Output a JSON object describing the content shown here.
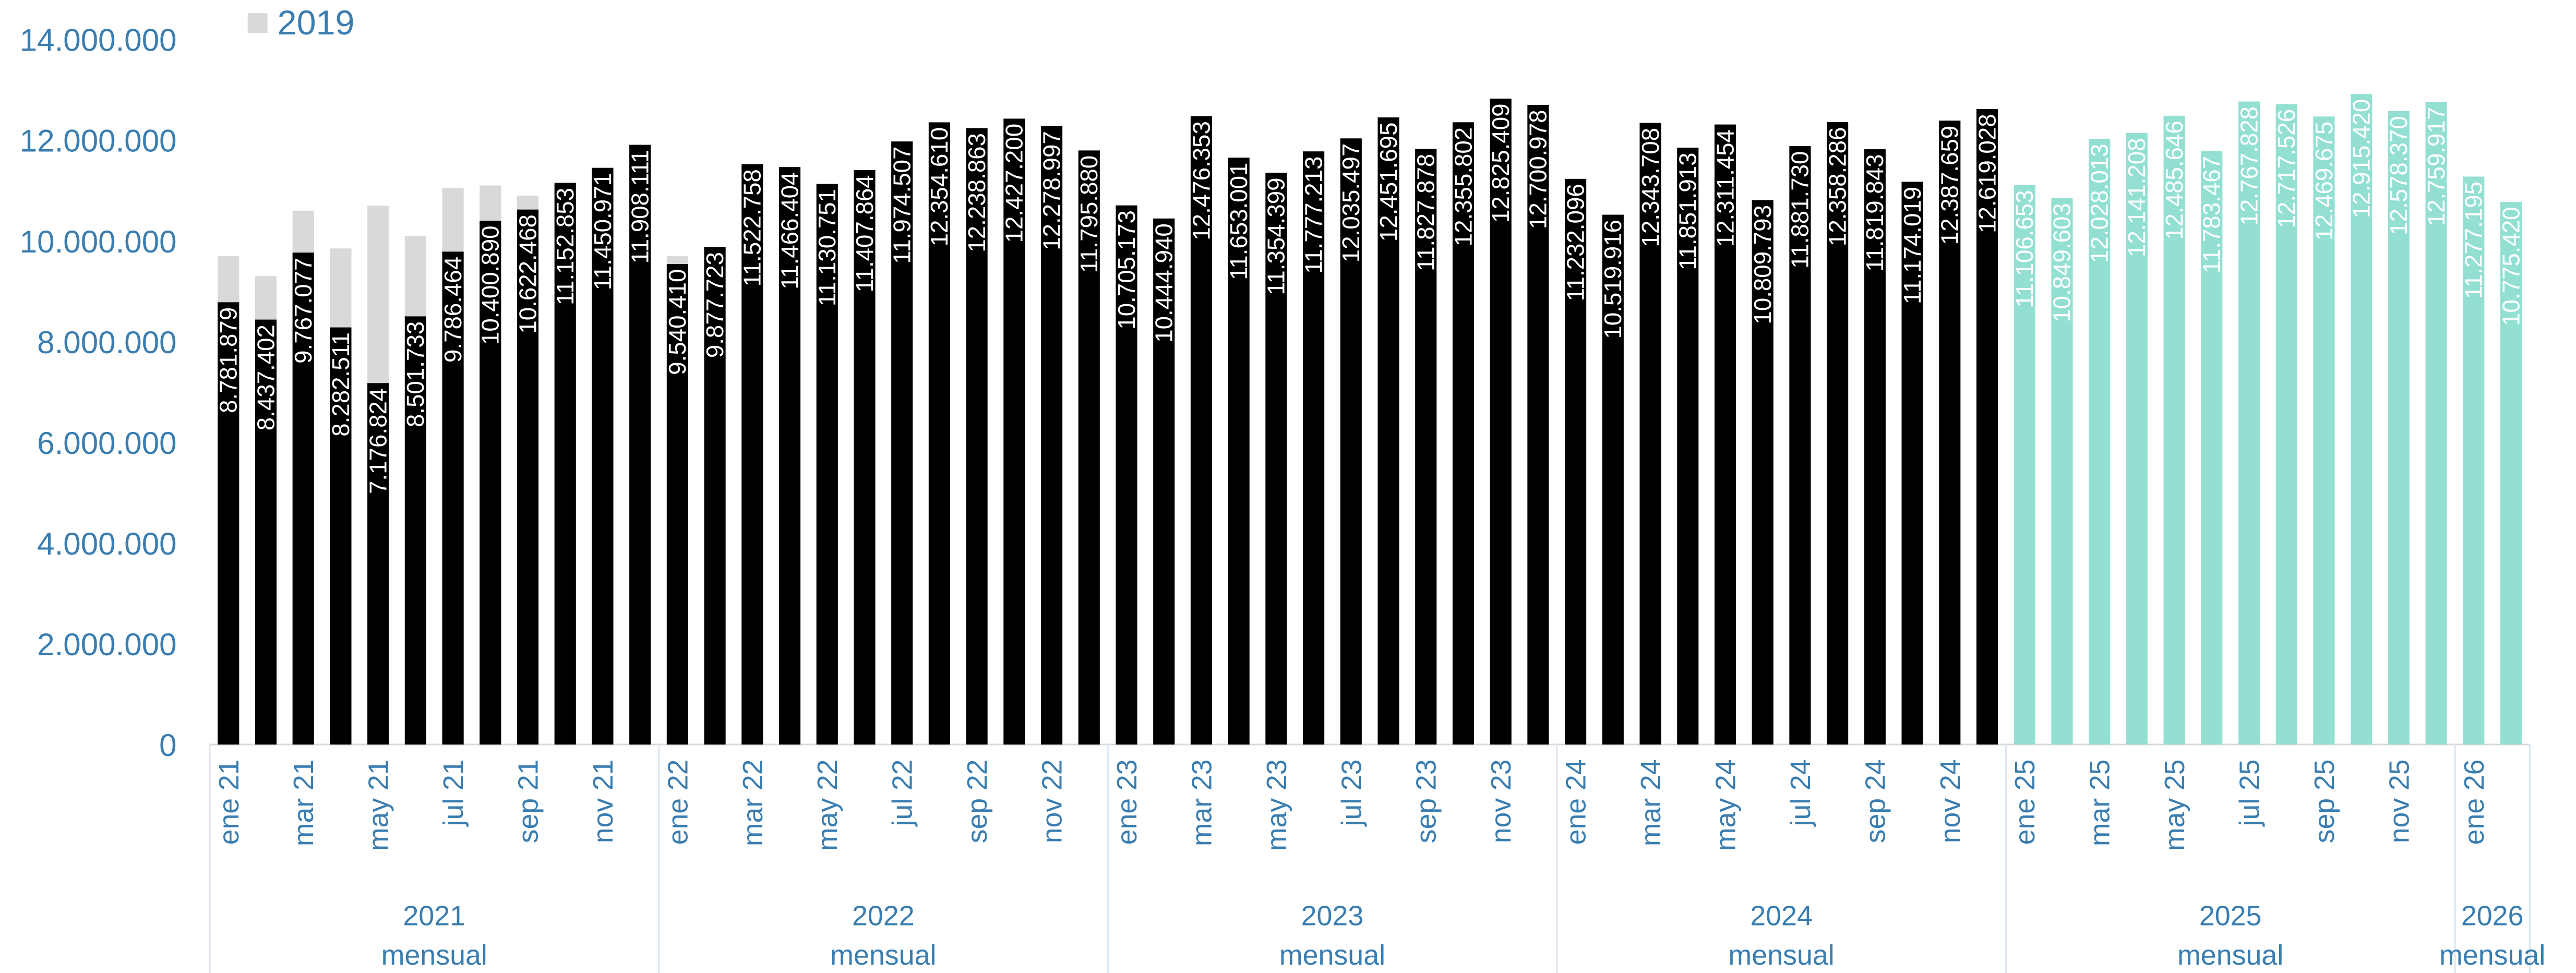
{
  "chart_data": {
    "type": "bar",
    "mode": "overlap",
    "categories": [
      "ene 21",
      null,
      "mar 21",
      null,
      "may 21",
      null,
      "jul 21",
      null,
      "sep 21",
      null,
      "nov 21",
      null,
      "ene 22",
      null,
      "mar 22",
      null,
      "may 22",
      null,
      "jul 22",
      null,
      "sep 22",
      null,
      "nov 22",
      null,
      "ene 23",
      null,
      "mar 23",
      null,
      "may 23",
      null,
      "jul 23",
      null,
      "sep 23",
      null,
      "nov 23",
      null,
      "ene 24",
      null,
      "mar 24",
      null,
      "may 24",
      null,
      "jul 24",
      null,
      "sep 24",
      null,
      "nov 24",
      null,
      "ene 25",
      null,
      "mar 25",
      null,
      "may 25",
      null,
      "jul 25",
      null,
      "sep 25",
      null,
      "nov 25",
      null,
      "ene 26",
      null
    ],
    "groups": [
      {
        "label": "2021",
        "sublabel": "mensual",
        "size": 12
      },
      {
        "label": "2022",
        "sublabel": "mensual",
        "size": 12
      },
      {
        "label": "2023",
        "sublabel": "mensual",
        "size": 12
      },
      {
        "label": "2024",
        "sublabel": "mensual",
        "size": 12
      },
      {
        "label": "2025",
        "sublabel": "mensual",
        "size": 12
      },
      {
        "label": "2026",
        "sublabel": "mensual",
        "size": 2
      }
    ],
    "series": [
      {
        "name": "2019",
        "color": "#d9d9d9",
        "values": [
          9700000,
          9300000,
          10600000,
          9850000,
          10700000,
          10100000,
          11050000,
          11100000,
          10900000,
          null,
          null,
          null,
          9700000,
          null,
          null,
          null,
          null,
          null,
          null,
          null,
          null,
          null,
          null,
          null,
          null,
          null,
          null,
          null,
          null,
          null,
          null,
          null,
          null,
          null,
          null,
          null,
          null,
          null,
          null,
          null,
          null,
          null,
          null,
          null,
          null,
          null,
          null,
          null,
          null,
          null,
          null,
          null,
          null,
          null,
          null,
          null,
          null,
          null,
          null,
          null,
          null,
          null
        ]
      },
      {
        "color": "#000000",
        "values": [
          8781879,
          8437402,
          9767077,
          8282511,
          7176824,
          8501733,
          9786464,
          10400890,
          10622468,
          11152853,
          11450971,
          11908111,
          9540410,
          9877723,
          11522758,
          11466404,
          11130751,
          11407864,
          11974507,
          12354610,
          12238863,
          12427200,
          12278997,
          11795880,
          10705173,
          10444940,
          12476353,
          11653001,
          11354399,
          11777213,
          12035497,
          12451695,
          11827878,
          12355802,
          12825409,
          12700978,
          11232096,
          10519916,
          12343708,
          11851913,
          12311454,
          10809793,
          11881730,
          12358286,
          11819843,
          11174019,
          12387659,
          12619028,
          null,
          null,
          null,
          null,
          null,
          null,
          null,
          null,
          null,
          null,
          null,
          null,
          null,
          null
        ],
        "value_labels": [
          "8.781.879",
          "8.437.402",
          "9.767.077",
          "8.282.511",
          "7.176.824",
          "8.501.733",
          "9.786.464",
          "10.400.890",
          "10.622.468",
          "11.152.853",
          "11.450.971",
          "11.908.111",
          "9.540.410",
          "9.877.723",
          "11.522.758",
          "11.466.404",
          "11.130.751",
          "11.407.864",
          "11.974.507",
          "12.354.610",
          "12.238.863",
          "12.427.200",
          "12.278.997",
          "11.795.880",
          "10.705.173",
          "10.444.940",
          "12.476.353",
          "11.653.001",
          "11.354.399",
          "11.777.213",
          "12.035.497",
          "12.451.695",
          "11.827.878",
          "12.355.802",
          "12.825.409",
          "12.700.978",
          "11.232.096",
          "10.519.916",
          "12.343.708",
          "11.851.913",
          "12.311.454",
          "10.809.793",
          "11.881.730",
          "12.358.286",
          "11.819.843",
          "11.174.019",
          "12.387.659",
          "12.619.028",
          null,
          null,
          null,
          null,
          null,
          null,
          null,
          null,
          null,
          null,
          null,
          null,
          null,
          null
        ]
      },
      {
        "color": "#93e0d3",
        "values": [
          null,
          null,
          null,
          null,
          null,
          null,
          null,
          null,
          null,
          null,
          null,
          null,
          null,
          null,
          null,
          null,
          null,
          null,
          null,
          null,
          null,
          null,
          null,
          null,
          null,
          null,
          null,
          null,
          null,
          null,
          null,
          null,
          null,
          null,
          null,
          null,
          null,
          null,
          null,
          null,
          null,
          null,
          null,
          null,
          null,
          null,
          null,
          null,
          11106653,
          10849603,
          12028013,
          12141208,
          12485646,
          11783467,
          12767828,
          12717526,
          12469675,
          12915420,
          12578370,
          12759917,
          11277195,
          10775420
        ],
        "value_labels": [
          null,
          null,
          null,
          null,
          null,
          null,
          null,
          null,
          null,
          null,
          null,
          null,
          null,
          null,
          null,
          null,
          null,
          null,
          null,
          null,
          null,
          null,
          null,
          null,
          null,
          null,
          null,
          null,
          null,
          null,
          null,
          null,
          null,
          null,
          null,
          null,
          null,
          null,
          null,
          null,
          null,
          null,
          null,
          null,
          null,
          null,
          null,
          null,
          "11.106.653",
          "10.849.603",
          "12.028.013",
          "12.141.208",
          "12.485.646",
          "11.783.467",
          "12.767.828",
          "12.717.526",
          "12.469.675",
          "12.915.420",
          "12.578.370",
          "12.759.917",
          "11.277.195",
          "10.775.420"
        ]
      }
    ],
    "ylim": [
      0,
      14000000
    ],
    "yticks": [
      0,
      {
        "value": 2000000,
        "label": "2.000.000"
      },
      {
        "value": 4000000,
        "label": "4.000.000"
      },
      {
        "value": 6000000,
        "label": "6.000.000"
      },
      {
        "value": 8000000,
        "label": "8.000.000"
      },
      {
        "value": 10000000,
        "label": "10.000.000"
      },
      {
        "value": 12000000,
        "label": "12.000.000"
      },
      {
        "value": 14000000,
        "label": "14.000.000"
      }
    ],
    "grid": false,
    "legend": "top-left"
  }
}
